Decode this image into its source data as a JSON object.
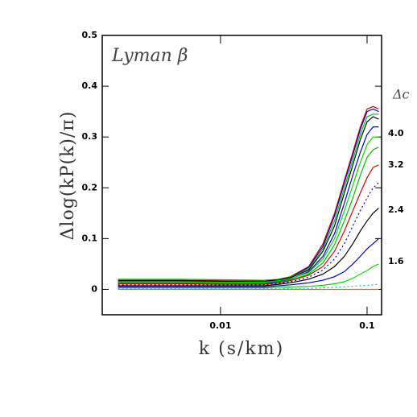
{
  "chart_data": {
    "type": "line",
    "title": "Lyman β",
    "x_label": "k (s/km)",
    "y_label": "Δlog(kP(k)/π)",
    "legend_title": "Δc",
    "annotations": [
      "4.0",
      "3.2",
      "2.4",
      "1.6"
    ],
    "x": [
      0.002,
      0.005,
      0.01,
      0.02,
      0.025,
      0.03,
      0.04,
      0.05,
      0.06,
      0.07,
      0.08,
      0.09,
      0.1,
      0.11,
      0.12
    ],
    "log_x": true,
    "xlim": [
      0.00156,
      0.1256
    ],
    "xticks": [
      0.01,
      0.1
    ],
    "ylim": [
      -0.05,
      0.5
    ],
    "yticks": [
      0,
      0.1,
      0.2,
      0.3,
      0.4,
      0.5
    ],
    "grid": false,
    "series": [
      {
        "color": "#e00000",
        "style": "solid",
        "values": [
          0.018,
          0.018,
          0.017,
          0.016,
          0.02,
          0.025,
          0.045,
          0.09,
          0.15,
          0.215,
          0.27,
          0.32,
          0.355,
          0.36,
          0.355
        ]
      },
      {
        "color": "#0000d0",
        "style": "solid",
        "values": [
          0.016,
          0.016,
          0.015,
          0.014,
          0.019,
          0.024,
          0.043,
          0.085,
          0.145,
          0.21,
          0.265,
          0.315,
          0.35,
          0.355,
          0.35
        ]
      },
      {
        "color": "#00c000",
        "style": "solid",
        "values": [
          0.02,
          0.02,
          0.019,
          0.018,
          0.02,
          0.024,
          0.04,
          0.08,
          0.135,
          0.2,
          0.255,
          0.305,
          0.34,
          0.345,
          0.345
        ]
      },
      {
        "color": "#000000",
        "style": "solid",
        "values": [
          0.017,
          0.017,
          0.016,
          0.016,
          0.019,
          0.023,
          0.038,
          0.075,
          0.125,
          0.19,
          0.245,
          0.295,
          0.33,
          0.34,
          0.335
        ]
      },
      {
        "color": "#0000d0",
        "style": "solid",
        "values": [
          0.013,
          0.013,
          0.012,
          0.012,
          0.016,
          0.02,
          0.035,
          0.065,
          0.11,
          0.17,
          0.225,
          0.27,
          0.305,
          0.32,
          0.32
        ]
      },
      {
        "color": "#00e000",
        "style": "solid",
        "values": [
          0.015,
          0.015,
          0.014,
          0.014,
          0.017,
          0.021,
          0.033,
          0.06,
          0.1,
          0.155,
          0.205,
          0.25,
          0.285,
          0.3,
          0.3
        ]
      },
      {
        "color": "#00c000",
        "style": "solid",
        "values": [
          0.012,
          0.012,
          0.011,
          0.011,
          0.014,
          0.018,
          0.03,
          0.052,
          0.088,
          0.135,
          0.18,
          0.225,
          0.26,
          0.275,
          0.28
        ]
      },
      {
        "color": "#e00000",
        "style": "solid",
        "values": [
          0.011,
          0.011,
          0.01,
          0.01,
          0.013,
          0.017,
          0.028,
          0.045,
          0.075,
          0.115,
          0.155,
          0.19,
          0.22,
          0.24,
          0.245
        ]
      },
      {
        "color": "#0000d0",
        "style": "dotted",
        "values": [
          0.009,
          0.009,
          0.009,
          0.009,
          0.012,
          0.015,
          0.024,
          0.038,
          0.06,
          0.09,
          0.125,
          0.155,
          0.18,
          0.2,
          0.21
        ]
      },
      {
        "color": "#000000",
        "style": "solid",
        "values": [
          0.007,
          0.007,
          0.007,
          0.007,
          0.01,
          0.013,
          0.02,
          0.03,
          0.045,
          0.065,
          0.09,
          0.115,
          0.135,
          0.15,
          0.16
        ]
      },
      {
        "color": "#0000d0",
        "style": "solid",
        "values": [
          0.005,
          0.005,
          0.005,
          0.005,
          0.007,
          0.009,
          0.013,
          0.018,
          0.025,
          0.035,
          0.05,
          0.065,
          0.08,
          0.09,
          0.1
        ]
      },
      {
        "color": "#00e000",
        "style": "solid",
        "values": [
          0.003,
          0.003,
          0.003,
          0.003,
          0.004,
          0.005,
          0.006,
          0.008,
          0.011,
          0.015,
          0.022,
          0.03,
          0.037,
          0.045,
          0.05
        ]
      },
      {
        "color": "#00c0c0",
        "style": "dotted",
        "values": [
          0.001,
          0.001,
          0.001,
          0.001,
          0.001,
          0.002,
          0.002,
          0.003,
          0.004,
          0.005,
          0.006,
          0.007,
          0.008,
          0.009,
          0.01
        ]
      },
      {
        "color": "#e07000",
        "style": "solid",
        "values": [
          0,
          0,
          0,
          0,
          0,
          0,
          0,
          0,
          0,
          0,
          0,
          0,
          0,
          0,
          0
        ]
      }
    ]
  }
}
